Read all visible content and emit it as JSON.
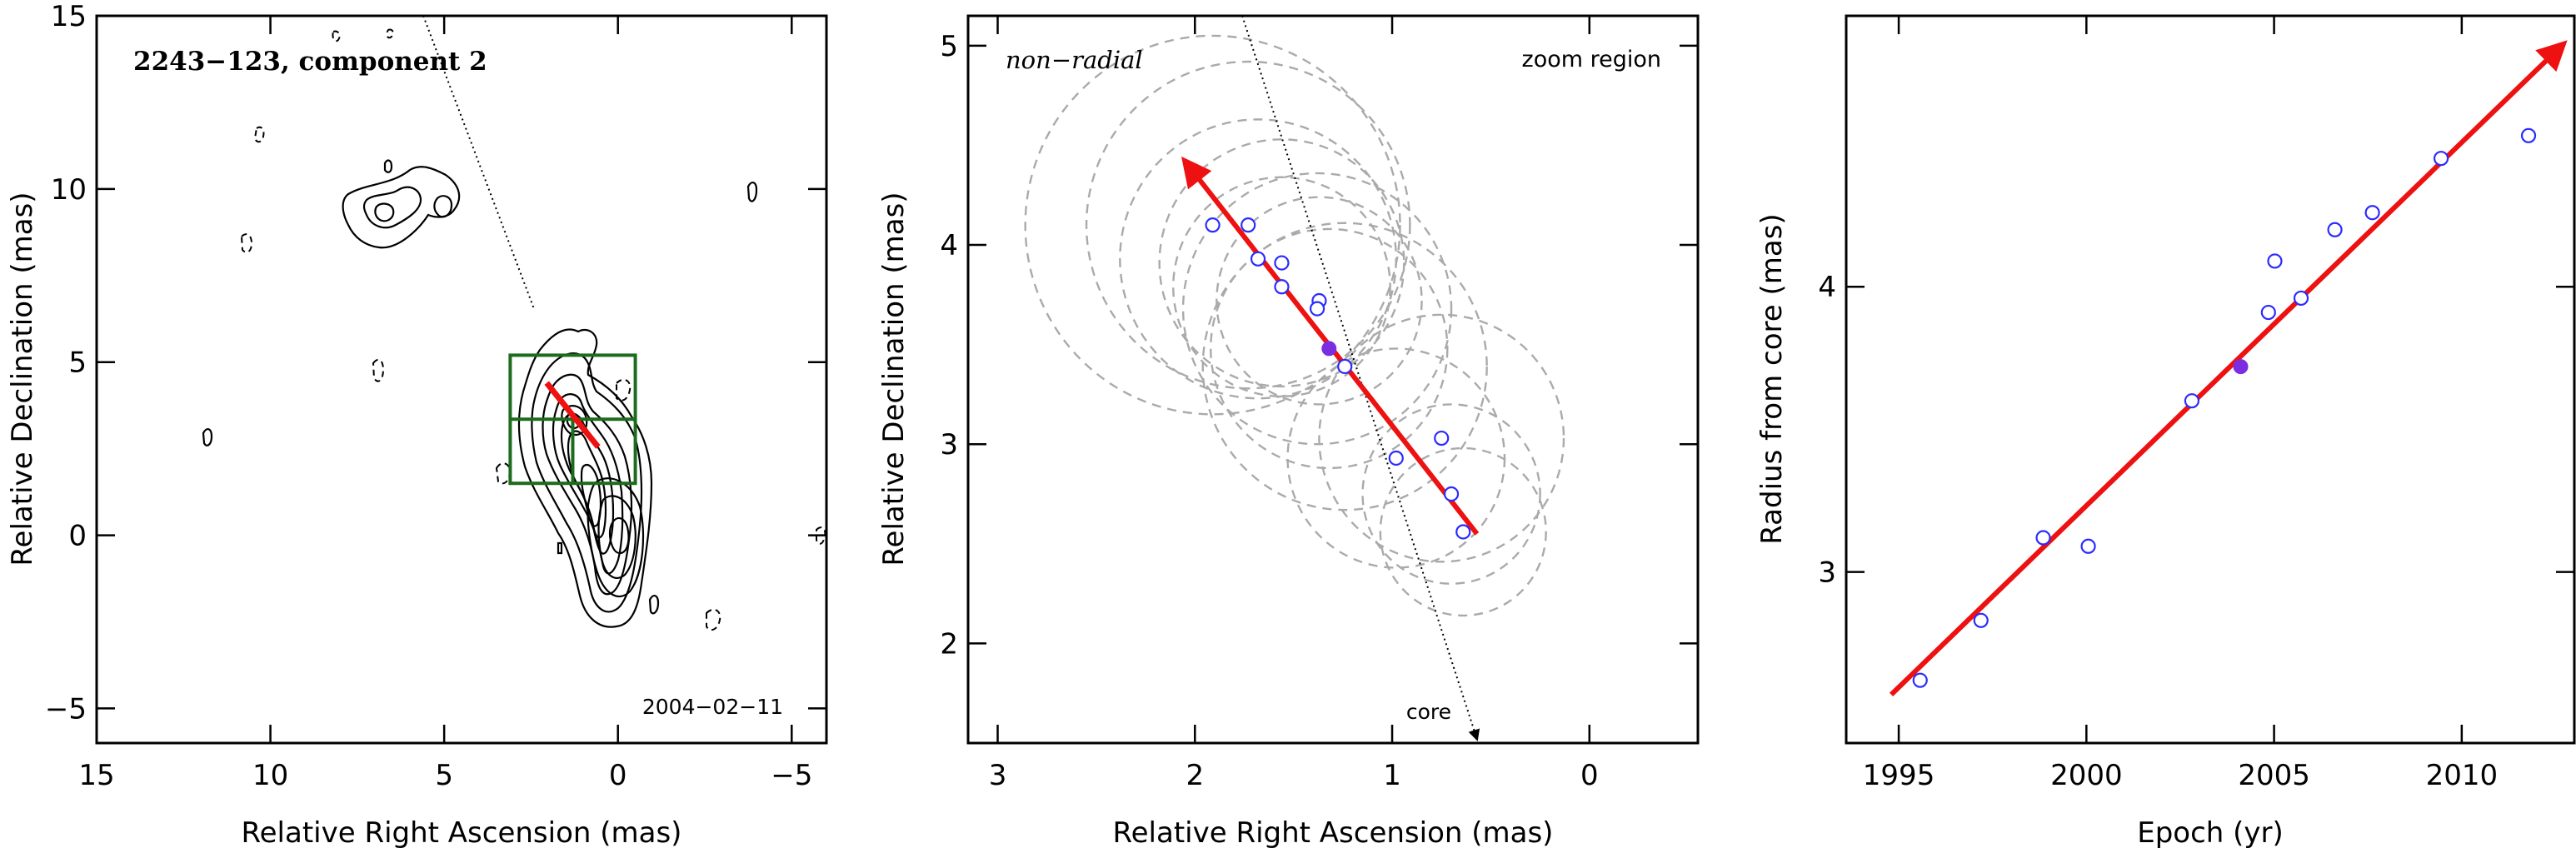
{
  "colors": {
    "fit_arrow": "#ee1111",
    "open_points": "#2b2bff",
    "filled_point": "#7b2ee0",
    "zoom_box": "#1d6b1d",
    "circles": "#aaaaaa"
  },
  "chart_data": [
    {
      "type": "contour",
      "title": "2243−123, component 2",
      "annotation": "2004−02−11",
      "xlabel": "Relative Right Ascension (mas)",
      "ylabel": "Relative Declination (mas)",
      "xlim": [
        15,
        -6
      ],
      "ylim": [
        -6,
        15
      ],
      "xticks": [
        15,
        10,
        5,
        0,
        -5
      ],
      "xtick_labels": [
        "15",
        "10",
        "5",
        "0",
        "−5"
      ],
      "yticks": [
        -5,
        0,
        5,
        10,
        15
      ],
      "ytick_labels": [
        "−5",
        "0",
        "5",
        "10",
        "15"
      ],
      "jet_direction_line": {
        "from": [
          5.6,
          15
        ],
        "to": [
          2.4,
          6.5
        ]
      },
      "zoom_box": {
        "x": [
          3.1,
          -0.5
        ],
        "y": [
          1.5,
          5.2
        ]
      },
      "fit_segment": {
        "from": [
          2.05,
          4.4
        ],
        "to": [
          0.57,
          2.55
        ]
      }
    },
    {
      "type": "scatter",
      "title": "non−radial",
      "annotation": "zoom region",
      "core_label": "core",
      "xlabel": "Relative Right Ascension (mas)",
      "ylabel": "Relative Declination (mas)",
      "xlim": [
        3.15,
        -0.55
      ],
      "ylim": [
        1.5,
        5.15
      ],
      "xticks": [
        3,
        2,
        1,
        0
      ],
      "xtick_labels": [
        "3",
        "2",
        "1",
        "0"
      ],
      "yticks": [
        2,
        3,
        4,
        5
      ],
      "ytick_labels": [
        "2",
        "3",
        "4",
        "5"
      ],
      "points": [
        {
          "x": 1.91,
          "y": 4.1
        },
        {
          "x": 1.73,
          "y": 4.1
        },
        {
          "x": 1.68,
          "y": 3.93
        },
        {
          "x": 1.56,
          "y": 3.91
        },
        {
          "x": 1.56,
          "y": 3.79
        },
        {
          "x": 1.37,
          "y": 3.72
        },
        {
          "x": 1.38,
          "y": 3.68
        },
        {
          "x": 1.24,
          "y": 3.39
        },
        {
          "x": 0.98,
          "y": 2.93
        },
        {
          "x": 0.75,
          "y": 3.03
        },
        {
          "x": 0.7,
          "y": 2.75
        },
        {
          "x": 0.64,
          "y": 2.56
        }
      ],
      "highlight_point": {
        "x": 1.32,
        "y": 3.48
      },
      "circles": [
        {
          "x": 1.91,
          "y": 4.1,
          "r": 0.95
        },
        {
          "x": 1.73,
          "y": 4.1,
          "r": 0.82
        },
        {
          "x": 1.68,
          "y": 3.93,
          "r": 0.7
        },
        {
          "x": 1.56,
          "y": 3.91,
          "r": 0.62
        },
        {
          "x": 1.56,
          "y": 3.79,
          "r": 0.55
        },
        {
          "x": 1.37,
          "y": 3.72,
          "r": 0.52
        },
        {
          "x": 1.38,
          "y": 3.68,
          "r": 0.68
        },
        {
          "x": 1.32,
          "y": 3.48,
          "r": 0.6
        },
        {
          "x": 1.24,
          "y": 3.39,
          "r": 0.72
        },
        {
          "x": 0.98,
          "y": 2.93,
          "r": 0.55
        },
        {
          "x": 0.75,
          "y": 3.03,
          "r": 0.62
        },
        {
          "x": 0.7,
          "y": 2.75,
          "r": 0.45
        },
        {
          "x": 0.64,
          "y": 2.56,
          "r": 0.42
        }
      ],
      "fit_arrow": {
        "from": [
          0.57,
          2.55
        ],
        "to": [
          2.05,
          4.42
        ]
      },
      "core_line": {
        "from": [
          1.76,
          5.15
        ],
        "to": [
          0.57,
          1.52
        ]
      }
    },
    {
      "type": "scatter",
      "xlabel": "Epoch (yr)",
      "ylabel": "Radius from core (mas)",
      "xlim": [
        1993.6,
        2013.0
      ],
      "ylim": [
        2.4,
        4.95
      ],
      "xticks": [
        1995,
        2000,
        2005,
        2010
      ],
      "xtick_labels": [
        "1995",
        "2000",
        "2005",
        "2010"
      ],
      "yticks": [
        3,
        4
      ],
      "ytick_labels": [
        "3",
        "4"
      ],
      "points": [
        {
          "x": 1995.57,
          "y": 2.62
        },
        {
          "x": 1997.19,
          "y": 2.83
        },
        {
          "x": 1998.85,
          "y": 3.12
        },
        {
          "x": 2000.05,
          "y": 3.09
        },
        {
          "x": 2002.81,
          "y": 3.6
        },
        {
          "x": 2004.85,
          "y": 3.91
        },
        {
          "x": 2005.02,
          "y": 4.09
        },
        {
          "x": 2005.72,
          "y": 3.96
        },
        {
          "x": 2006.62,
          "y": 4.2
        },
        {
          "x": 2007.62,
          "y": 4.26
        },
        {
          "x": 2009.45,
          "y": 4.45
        },
        {
          "x": 2011.78,
          "y": 4.53
        }
      ],
      "highlight_point": {
        "x": 2004.11,
        "y": 3.72
      },
      "fit_arrow": {
        "from": [
          1994.8,
          2.57
        ],
        "to": [
          2012.7,
          4.85
        ]
      }
    }
  ]
}
